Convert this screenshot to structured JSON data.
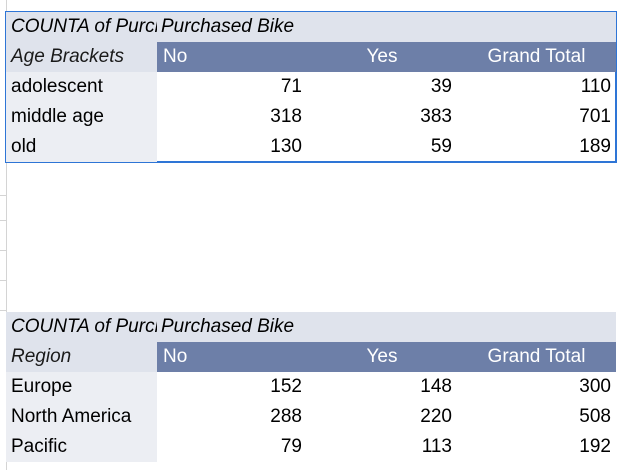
{
  "pivot1": {
    "value_label": "COUNTA of Purchased Bike",
    "column_field": "Purchased Bike",
    "row_field": "Age Brackets",
    "columns": [
      "No",
      "Yes",
      "Grand Total"
    ],
    "rows": [
      {
        "label": "adolescent",
        "no": "71",
        "yes": "39",
        "total": "110"
      },
      {
        "label": "middle age",
        "no": "318",
        "yes": "383",
        "total": "701"
      },
      {
        "label": "old",
        "no": "130",
        "yes": "59",
        "total": "189"
      }
    ]
  },
  "pivot2": {
    "value_label": "COUNTA of Purchased Bike",
    "column_field": "Purchased Bike",
    "row_field": "Region",
    "columns": [
      "No",
      "Yes",
      "Grand Total"
    ],
    "rows": [
      {
        "label": "Europe",
        "no": "152",
        "yes": "148",
        "total": "300"
      },
      {
        "label": "North America",
        "no": "288",
        "yes": "220",
        "total": "508"
      },
      {
        "label": "Pacific",
        "no": "79",
        "yes": "113",
        "total": "192"
      }
    ]
  },
  "colors": {
    "header_fill": "#6d7fa8",
    "title_fill": "#dfe3ec",
    "row_label_fill": "#eceef3",
    "selection_border": "#2e75d6"
  }
}
